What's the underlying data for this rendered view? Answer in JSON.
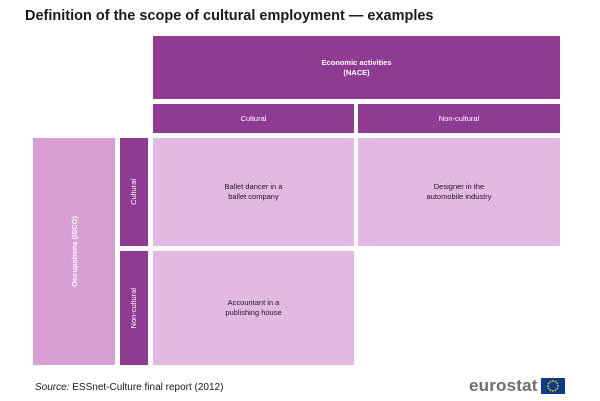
{
  "title": "Definition of the scope of cultural employment — examples",
  "columns_header": {
    "line1": "Economic activities",
    "line2": "(NACE)"
  },
  "columns": [
    {
      "label": "Cultural"
    },
    {
      "label": "Non-cultural"
    }
  ],
  "rows_header": {
    "label": "Occupations (ISCO)"
  },
  "rows": [
    {
      "label": "Cultural"
    },
    {
      "label": "Non-cultural"
    }
  ],
  "cells": {
    "cultural_cultural": {
      "line1": "Ballet dancer in a",
      "line2": "ballet company"
    },
    "cultural_noncultural": {
      "line1": "Designer in the",
      "line2": "automobile industry"
    },
    "noncultural_cultural": {
      "line1": "Accountant in a",
      "line2": "publishing house"
    }
  },
  "source": {
    "label": "Source:",
    "text": " ESSnet-Culture final report (2012)"
  },
  "logo": {
    "text": "eurostat"
  },
  "colors": {
    "dark": "#8f3a93",
    "mid": "#d89fd4",
    "light": "#e3b8e3",
    "eu_blue": "#0d3c8c",
    "eu_star": "#f4d40c"
  }
}
